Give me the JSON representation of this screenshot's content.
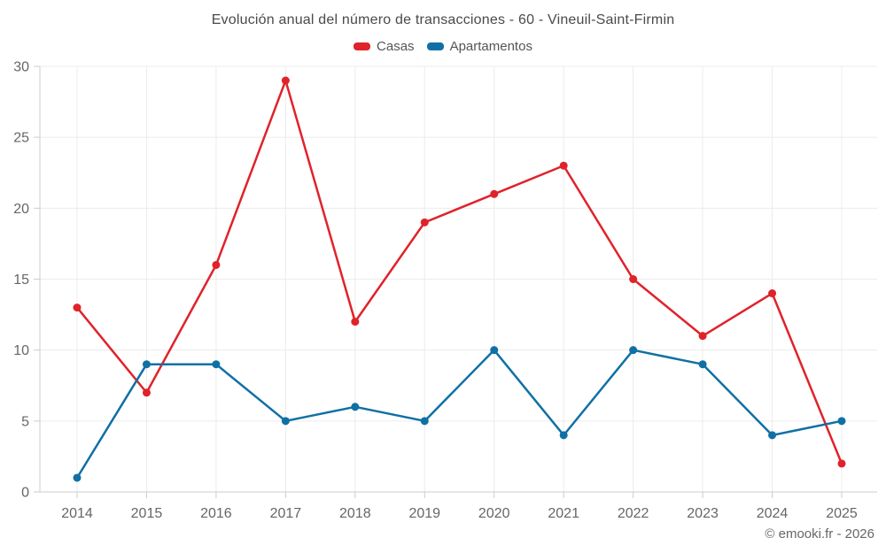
{
  "page": {
    "title": "Evolución anual del número de transacciones - 60 - Vineuil-Saint-Firmin",
    "attribution": "© emooki.fr - 2026"
  },
  "legend": [
    {
      "label": "Casas",
      "color": "#e0222a"
    },
    {
      "label": "Apartamentos",
      "color": "#1070a4"
    }
  ],
  "chart_data": {
    "type": "line",
    "title": "Evolución anual del número de transacciones - 60 - Vineuil-Saint-Firmin",
    "x": [
      2014,
      2015,
      2016,
      2017,
      2018,
      2019,
      2020,
      2021,
      2022,
      2023,
      2024,
      2025
    ],
    "series": [
      {
        "name": "Casas",
        "color": "#e0222a",
        "values": [
          13,
          7,
          16,
          29,
          12,
          19,
          21,
          23,
          15,
          11,
          14,
          2
        ]
      },
      {
        "name": "Apartamentos",
        "color": "#1070a4",
        "values": [
          1,
          9,
          9,
          5,
          6,
          5,
          10,
          4,
          10,
          9,
          4,
          5
        ]
      }
    ],
    "xlabel": "",
    "ylabel": "",
    "ylim": [
      0,
      30
    ],
    "yticks": [
      0,
      5,
      10,
      15,
      20,
      25,
      30
    ],
    "grid": true,
    "legend_position": "top",
    "colors": {
      "grid": "#ececec",
      "axis": "#cccccc",
      "tick_label": "#666666"
    }
  }
}
